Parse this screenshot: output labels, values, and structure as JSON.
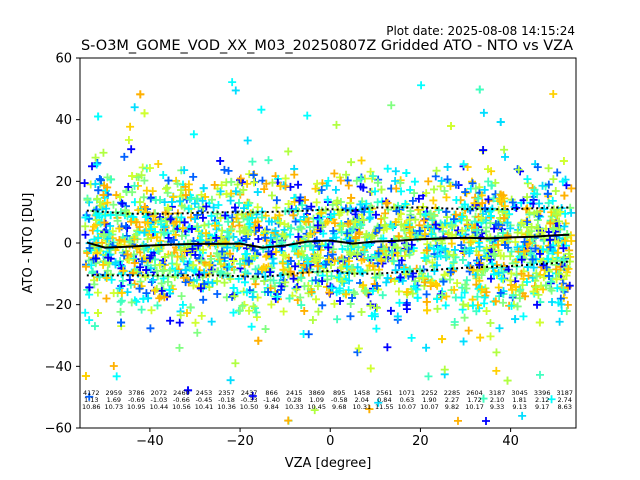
{
  "chart_data": {
    "type": "scatter",
    "title": "S-O3M_GOME_VOD_XX_M03_20250807Z Gridded ATO - NTO vs VZA",
    "plot_date": "Plot date: 2025-08-08 14:15:24",
    "xlabel": "VZA [degree]",
    "ylabel": "ATO - NTO [DU]",
    "xlim": [
      -55.5,
      54.5
    ],
    "ylim": [
      -60,
      60
    ],
    "xticks": [
      -40,
      -20,
      0,
      20,
      40
    ],
    "yticks": [
      -60,
      -40,
      -20,
      0,
      20,
      40,
      60
    ],
    "grid": false,
    "legend": "none",
    "marker": "+",
    "marker_colors": [
      "#00ffff",
      "#00ddff",
      "#80ff80",
      "#b0ff40",
      "#40ffc0",
      "#ffd000",
      "#ffb000",
      "#0060ff",
      "#0000ff",
      "#d0ff30"
    ],
    "scatter_spread": {
      "x_range": [
        -54.5,
        53.5
      ],
      "main_band": [
        -30,
        35
      ],
      "outliers": [
        -58,
        53
      ]
    },
    "mean_line": {
      "x": [
        -54,
        -50,
        -45,
        -40,
        -35,
        -30,
        -25,
        -20,
        -15,
        -10,
        -5,
        0,
        5,
        10,
        15,
        20,
        25,
        30,
        35,
        40,
        45,
        50,
        53
      ],
      "y": [
        0.2,
        -1.5,
        -1.2,
        -0.8,
        -0.5,
        -0.3,
        -0.3,
        -0.2,
        -1.5,
        -0.8,
        0.5,
        0.8,
        -0.2,
        0.5,
        0.7,
        1.2,
        1.5,
        1.7,
        1.5,
        1.8,
        2.0,
        2.5,
        2.7
      ],
      "color": "#000000",
      "style": "solid"
    },
    "upper_std_line": {
      "x": [
        -54,
        -45,
        -35,
        -25,
        -15,
        -5,
        0,
        5,
        10,
        20,
        30,
        40,
        50,
        53
      ],
      "y": [
        10.5,
        9.5,
        9.5,
        10.0,
        10.0,
        10.5,
        11.0,
        10.5,
        11.5,
        11.5,
        11.0,
        11.0,
        11.5,
        11.5
      ],
      "color": "#000000",
      "style": "dotted"
    },
    "lower_std_line": {
      "x": [
        -54,
        -45,
        -35,
        -25,
        -15,
        -5,
        0,
        5,
        10,
        20,
        30,
        40,
        50,
        53
      ],
      "y": [
        -10.5,
        -10.5,
        -10.5,
        -10.5,
        -11.0,
        -9.5,
        -9.0,
        -10.0,
        -10.0,
        -9.0,
        -8.0,
        -7.5,
        -6.5,
        -6.0
      ],
      "color": "#000000",
      "style": "dotted"
    },
    "stats_annotations": {
      "x": [
        -53,
        -48,
        -43,
        -38,
        -33,
        -28,
        -23,
        -18,
        -13,
        -8,
        -3,
        2,
        7,
        12,
        17,
        22,
        27,
        32,
        37,
        42,
        47,
        52
      ],
      "rows": [
        [
          "4172",
          "2959",
          "3786",
          "2072",
          "2460",
          "2453",
          "2357",
          "2437",
          "866",
          "2415",
          "3869",
          "895",
          "1458",
          "2561",
          "1071",
          "2252",
          "2285",
          "2604",
          "3187",
          "3045",
          "3396",
          "3187"
        ],
        [
          "1.13",
          "1.69",
          "-0.69",
          "-1.03",
          "-0.66",
          "-0.45",
          "-0.18",
          "-0.33",
          "-1.40",
          "0.28",
          "1.09",
          "-0.58",
          "2.04",
          "0.84",
          "0.63",
          "1.90",
          "2.27",
          "1.72",
          "2.10",
          "1.81",
          "2.12",
          "2.74"
        ],
        [
          "10.86",
          "10.73",
          "10.95",
          "10.44",
          "10.56",
          "10.41",
          "10.36",
          "10.50",
          "9.84",
          "10.33",
          "10.45",
          "9.68",
          "10.31",
          "11.55",
          "10.07",
          "10.07",
          "9.82",
          "10.17",
          "9.33",
          "9.13",
          "9.17",
          "8.63"
        ]
      ]
    }
  }
}
